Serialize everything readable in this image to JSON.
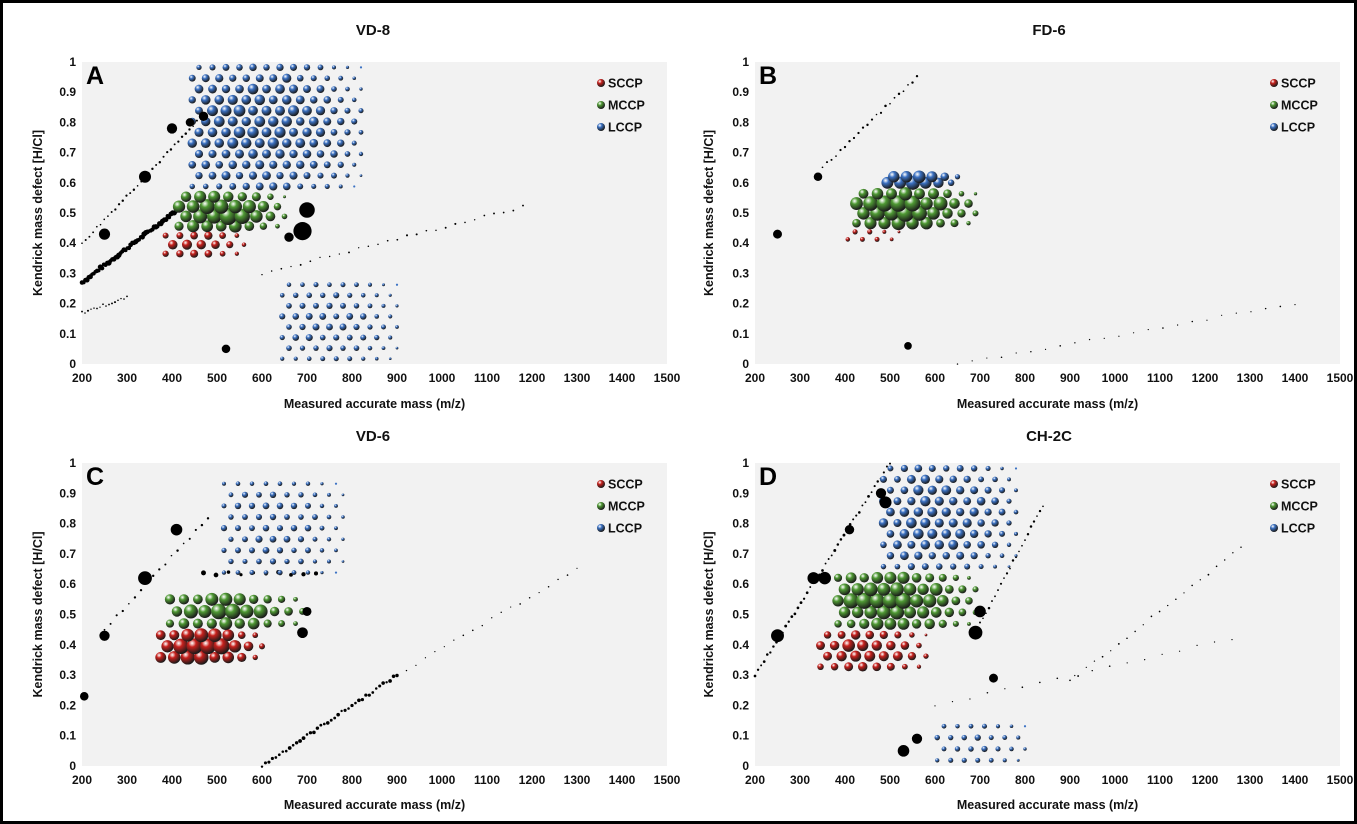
{
  "figure": {
    "legend_entries": [
      "SCCP",
      "MCCP",
      "LCCP"
    ],
    "colors": {
      "SCCP": "#c8201c",
      "MCCP": "#4f9a34",
      "LCCP": "#3b72c4",
      "other": "#000000",
      "plot_bg": "#f2f2f2"
    }
  },
  "chart_data": [
    {
      "type": "scatter",
      "panel_label": "A",
      "title": "VD-8",
      "xlabel": "Measured accurate mass (m/z)",
      "ylabel": "Kendrick mass defect [H/Cl]",
      "xlim": [
        200,
        1500
      ],
      "ylim": [
        0,
        1
      ],
      "x_ticks": [
        "200",
        "300",
        "400",
        "500",
        "600",
        "700",
        "800",
        "900",
        "1000",
        "1100",
        "1200",
        "1300",
        "1400",
        "1500"
      ],
      "y_ticks": [
        "0",
        "0.1",
        "0.2",
        "0.3",
        "0.4",
        "0.5",
        "0.6",
        "0.7",
        "0.8",
        "0.9",
        "1"
      ],
      "legend": {
        "entries": [
          "SCCP",
          "MCCP",
          "LCCP"
        ],
        "position": "top-right"
      },
      "grid": false,
      "series": [
        {
          "name": "SCCP",
          "clusters": [
            {
              "x": [
                370,
                560
              ],
              "y": [
                0.35,
                0.44
              ],
              "intensity": 0.55
            }
          ]
        },
        {
          "name": "MCCP",
          "clusters": [
            {
              "x": [
                400,
                650
              ],
              "y": [
                0.44,
                0.57
              ],
              "intensity": 1.0
            }
          ]
        },
        {
          "name": "LCCP",
          "clusters": [
            {
              "x": [
                430,
                820
              ],
              "y": [
                0.57,
                1.0
              ],
              "intensity": 0.65
            },
            {
              "x": [
                630,
                900
              ],
              "y": [
                0.0,
                0.28
              ],
              "intensity": 0.35
            }
          ]
        }
      ],
      "other_points": [
        {
          "x": 690,
          "y": 0.44,
          "size": 3
        },
        {
          "x": 700,
          "y": 0.51,
          "size": 2.4
        },
        {
          "x": 250,
          "y": 0.43,
          "size": 1.4
        },
        {
          "x": 340,
          "y": 0.62,
          "size": 1.6
        },
        {
          "x": 400,
          "y": 0.78,
          "size": 1.2
        },
        {
          "x": 470,
          "y": 0.82,
          "size": 1.0
        },
        {
          "x": 660,
          "y": 0.42,
          "size": 1.0
        },
        {
          "x": 520,
          "y": 0.05,
          "size": 0.8
        },
        {
          "x": 440,
          "y": 0.8,
          "size": 0.8
        }
      ],
      "other_lines": [
        {
          "from": [
            200,
            0.27
          ],
          "to": [
            420,
            0.52
          ],
          "size": 1.3,
          "n": 60
        },
        {
          "from": [
            200,
            0.4
          ],
          "to": [
            480,
            0.84
          ],
          "size": 0.6,
          "n": 35
        },
        {
          "from": [
            200,
            0.17
          ],
          "to": [
            300,
            0.22
          ],
          "size": 0.5,
          "n": 16
        },
        {
          "from": [
            600,
            0.3
          ],
          "to": [
            1180,
            0.52
          ],
          "size": 0.5,
          "n": 28
        }
      ]
    },
    {
      "type": "scatter",
      "panel_label": "B",
      "title": "FD-6",
      "xlabel": "Measured accurate mass (m/z)",
      "ylabel": "Kendrick mass defect [H/Cl]",
      "xlim": [
        200,
        1500
      ],
      "ylim": [
        0,
        1
      ],
      "x_ticks": [
        "200",
        "300",
        "400",
        "500",
        "600",
        "700",
        "800",
        "900",
        "1000",
        "1100",
        "1200",
        "1300",
        "1400",
        "1500"
      ],
      "y_ticks": [
        "0",
        "0.1",
        "0.2",
        "0.3",
        "0.4",
        "0.5",
        "0.6",
        "0.7",
        "0.8",
        "0.9",
        "1"
      ],
      "legend": {
        "entries": [
          "SCCP",
          "MCCP",
          "LCCP"
        ],
        "position": "top-right"
      },
      "grid": false,
      "series": [
        {
          "name": "SCCP",
          "clusters": [
            {
              "x": [
                390,
                520
              ],
              "y": [
                0.4,
                0.45
              ],
              "intensity": 0.25
            }
          ]
        },
        {
          "name": "MCCP",
          "clusters": [
            {
              "x": [
                410,
                690
              ],
              "y": [
                0.45,
                0.58
              ],
              "intensity": 1.0
            }
          ]
        },
        {
          "name": "LCCP",
          "clusters": [
            {
              "x": [
                480,
                650
              ],
              "y": [
                0.59,
                0.63
              ],
              "intensity": 0.9
            }
          ]
        }
      ],
      "other_points": [
        {
          "x": 250,
          "y": 0.43,
          "size": 0.9
        },
        {
          "x": 340,
          "y": 0.62,
          "size": 0.8
        },
        {
          "x": 540,
          "y": 0.06,
          "size": 0.6
        }
      ],
      "other_lines": [
        {
          "from": [
            350,
            0.65
          ],
          "to": [
            560,
            0.95
          ],
          "size": 0.6,
          "n": 22
        },
        {
          "from": [
            650,
            0.0
          ],
          "to": [
            1400,
            0.2
          ],
          "size": 0.4,
          "n": 24
        }
      ]
    },
    {
      "type": "scatter",
      "panel_label": "C",
      "title": "VD-6",
      "xlabel": "Measured accurate mass (m/z)",
      "ylabel": "Kendrick mass defect [H/Cl]",
      "xlim": [
        200,
        1500
      ],
      "ylim": [
        0,
        1
      ],
      "x_ticks": [
        "200",
        "300",
        "400",
        "500",
        "600",
        "700",
        "800",
        "900",
        "1000",
        "1100",
        "1200",
        "1300",
        "1400",
        "1500"
      ],
      "y_ticks": [
        "0",
        "0.1",
        "0.2",
        "0.3",
        "0.4",
        "0.5",
        "0.6",
        "0.7",
        "0.8",
        "0.9",
        "1"
      ],
      "legend": {
        "entries": [
          "SCCP",
          "MCCP",
          "LCCP"
        ],
        "position": "top-right"
      },
      "grid": false,
      "series": [
        {
          "name": "SCCP",
          "clusters": [
            {
              "x": [
                360,
                600
              ],
              "y": [
                0.34,
                0.45
              ],
              "intensity": 1.0
            }
          ]
        },
        {
          "name": "MCCP",
          "clusters": [
            {
              "x": [
                380,
                690
              ],
              "y": [
                0.45,
                0.57
              ],
              "intensity": 0.9
            }
          ]
        },
        {
          "name": "LCCP",
          "clusters": [
            {
              "x": [
                500,
                780
              ],
              "y": [
                0.62,
                0.95
              ],
              "intensity": 0.35
            }
          ]
        }
      ],
      "other_points": [
        {
          "x": 340,
          "y": 0.62,
          "size": 2.0
        },
        {
          "x": 410,
          "y": 0.78,
          "size": 1.5
        },
        {
          "x": 250,
          "y": 0.43,
          "size": 1.2
        },
        {
          "x": 690,
          "y": 0.44,
          "size": 1.3
        },
        {
          "x": 700,
          "y": 0.51,
          "size": 0.9
        },
        {
          "x": 205,
          "y": 0.23,
          "size": 0.8
        }
      ],
      "other_lines": [
        {
          "from": [
            470,
            0.635
          ],
          "to": [
            720,
            0.635
          ],
          "size": 1.2,
          "n": 10
        },
        {
          "from": [
            600,
            0.0
          ],
          "to": [
            900,
            0.3
          ],
          "size": 0.9,
          "n": 40
        },
        {
          "from": [
            250,
            0.45
          ],
          "to": [
            480,
            0.82
          ],
          "size": 0.6,
          "n": 18
        },
        {
          "from": [
            900,
            0.3
          ],
          "to": [
            1300,
            0.65
          ],
          "size": 0.4,
          "n": 20
        }
      ]
    },
    {
      "type": "scatter",
      "panel_label": "D",
      "title": "CH-2C",
      "xlabel": "Measured accurate mass (m/z)",
      "ylabel": "Kendrick mass defect [H/Cl]",
      "xlim": [
        200,
        1500
      ],
      "ylim": [
        0,
        1
      ],
      "x_ticks": [
        "200",
        "300",
        "400",
        "500",
        "600",
        "700",
        "800",
        "900",
        "1000",
        "1100",
        "1200",
        "1300",
        "1400",
        "1500"
      ],
      "y_ticks": [
        "0",
        "0.1",
        "0.2",
        "0.3",
        "0.4",
        "0.5",
        "0.6",
        "0.7",
        "0.8",
        "0.9",
        "1"
      ],
      "legend": {
        "entries": [
          "SCCP",
          "MCCP",
          "LCCP"
        ],
        "position": "top-right"
      },
      "grid": false,
      "series": [
        {
          "name": "SCCP",
          "clusters": [
            {
              "x": [
                330,
                580
              ],
              "y": [
                0.31,
                0.45
              ],
              "intensity": 0.7
            }
          ]
        },
        {
          "name": "MCCP",
          "clusters": [
            {
              "x": [
                370,
                690
              ],
              "y": [
                0.45,
                0.64
              ],
              "intensity": 0.95
            }
          ]
        },
        {
          "name": "LCCP",
          "clusters": [
            {
              "x": [
                470,
                780
              ],
              "y": [
                0.64,
                1.0
              ],
              "intensity": 0.6
            },
            {
              "x": [
                590,
                800
              ],
              "y": [
                0.0,
                0.15
              ],
              "intensity": 0.3
            }
          ]
        }
      ],
      "other_points": [
        {
          "x": 250,
          "y": 0.43,
          "size": 1.8
        },
        {
          "x": 330,
          "y": 0.62,
          "size": 1.6
        },
        {
          "x": 355,
          "y": 0.62,
          "size": 1.7
        },
        {
          "x": 490,
          "y": 0.87,
          "size": 1.6
        },
        {
          "x": 480,
          "y": 0.9,
          "size": 1.2
        },
        {
          "x": 690,
          "y": 0.44,
          "size": 2.0
        },
        {
          "x": 700,
          "y": 0.51,
          "size": 1.5
        },
        {
          "x": 530,
          "y": 0.05,
          "size": 1.5
        },
        {
          "x": 560,
          "y": 0.09,
          "size": 1.2
        },
        {
          "x": 730,
          "y": 0.29,
          "size": 0.9
        },
        {
          "x": 410,
          "y": 0.78,
          "size": 1.0
        }
      ],
      "other_lines": [
        {
          "from": [
            200,
            0.3
          ],
          "to": [
            500,
            1.0
          ],
          "size": 0.7,
          "n": 45
        },
        {
          "from": [
            700,
            0.47
          ],
          "to": [
            840,
            0.86
          ],
          "size": 0.6,
          "n": 22
        },
        {
          "from": [
            900,
            0.28
          ],
          "to": [
            1280,
            0.72
          ],
          "size": 0.45,
          "n": 22
        },
        {
          "from": [
            600,
            0.2
          ],
          "to": [
            1260,
            0.42
          ],
          "size": 0.4,
          "n": 18
        }
      ]
    }
  ]
}
